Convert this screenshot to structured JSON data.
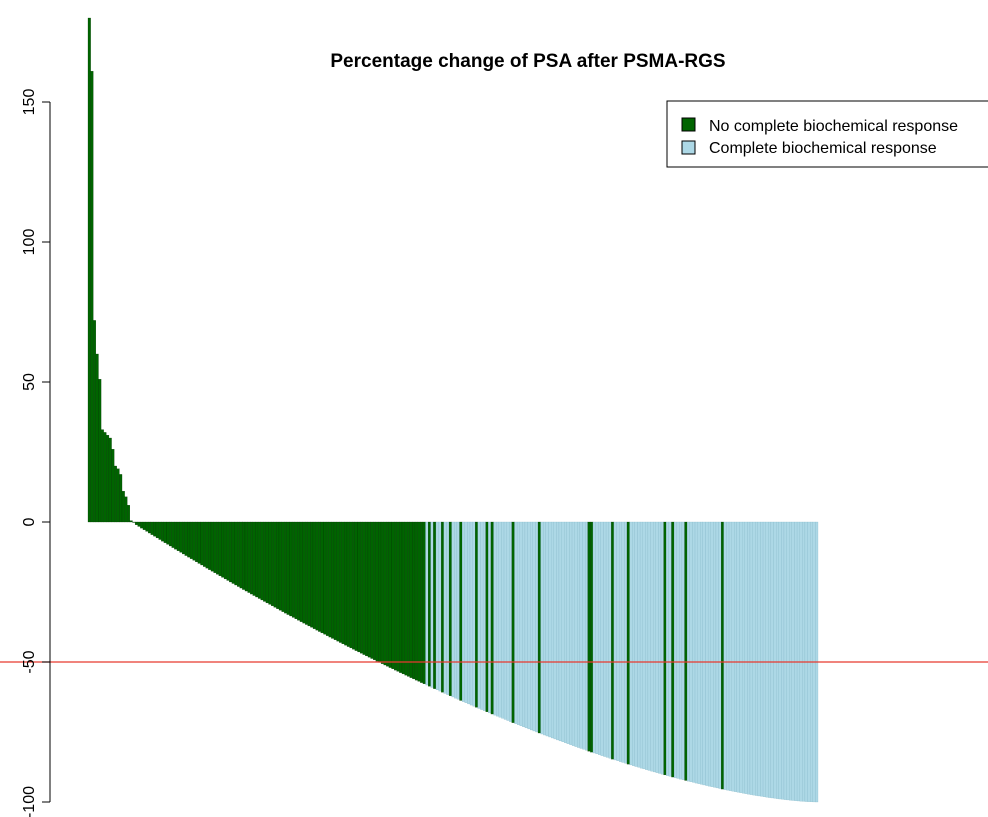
{
  "chart_data": {
    "type": "bar",
    "title": "Percentage change of PSA after PSMA-RGS",
    "xlabel": "",
    "ylabel": "",
    "ylim": [
      -100,
      180
    ],
    "yticks": [
      -100,
      -50,
      0,
      50,
      100,
      150
    ],
    "reference_line": {
      "y": -50,
      "color": "#e8392f"
    },
    "grid": false,
    "legend_position": "top-right",
    "colors": {
      "no_response": "#006400",
      "complete_response": "#add8e6",
      "bar_border": "#000000"
    },
    "legend": [
      {
        "label": "No complete biochemical response",
        "color": "#006400"
      },
      {
        "label": "Complete biochemical response",
        "color": "#add8e6"
      }
    ],
    "groups": [
      "No complete biochemical response",
      "Complete biochemical response"
    ],
    "positive_values": [
      180,
      161,
      72,
      60,
      51,
      33,
      32,
      31,
      30,
      26,
      20,
      19,
      17,
      11,
      9,
      6,
      0.5
    ],
    "negative_count": 261,
    "negative_range": [
      -1,
      -100
    ],
    "no_response_indices_among_negative": [
      0,
      1,
      2,
      3,
      4,
      5,
      6,
      7,
      8,
      9,
      10,
      11,
      12,
      13,
      14,
      15,
      16,
      17,
      18,
      19,
      20,
      21,
      22,
      23,
      24,
      25,
      26,
      27,
      28,
      29,
      30,
      31,
      32,
      33,
      34,
      35,
      36,
      37,
      38,
      39,
      40,
      41,
      42,
      43,
      44,
      45,
      46,
      47,
      48,
      49,
      50,
      51,
      52,
      53,
      54,
      55,
      56,
      57,
      58,
      59,
      60,
      61,
      62,
      63,
      64,
      65,
      66,
      67,
      68,
      69,
      70,
      71,
      72,
      73,
      74,
      75,
      76,
      77,
      78,
      79,
      80,
      81,
      82,
      83,
      84,
      85,
      86,
      87,
      88,
      89,
      90,
      91,
      92,
      93,
      94,
      95,
      96,
      97,
      98,
      99,
      100,
      101,
      102,
      103,
      104,
      105,
      106,
      107,
      108,
      109,
      110,
      112,
      114,
      117,
      120,
      124,
      130,
      134,
      136,
      144,
      154,
      173,
      174,
      182,
      188,
      202,
      205,
      210,
      224
    ]
  }
}
